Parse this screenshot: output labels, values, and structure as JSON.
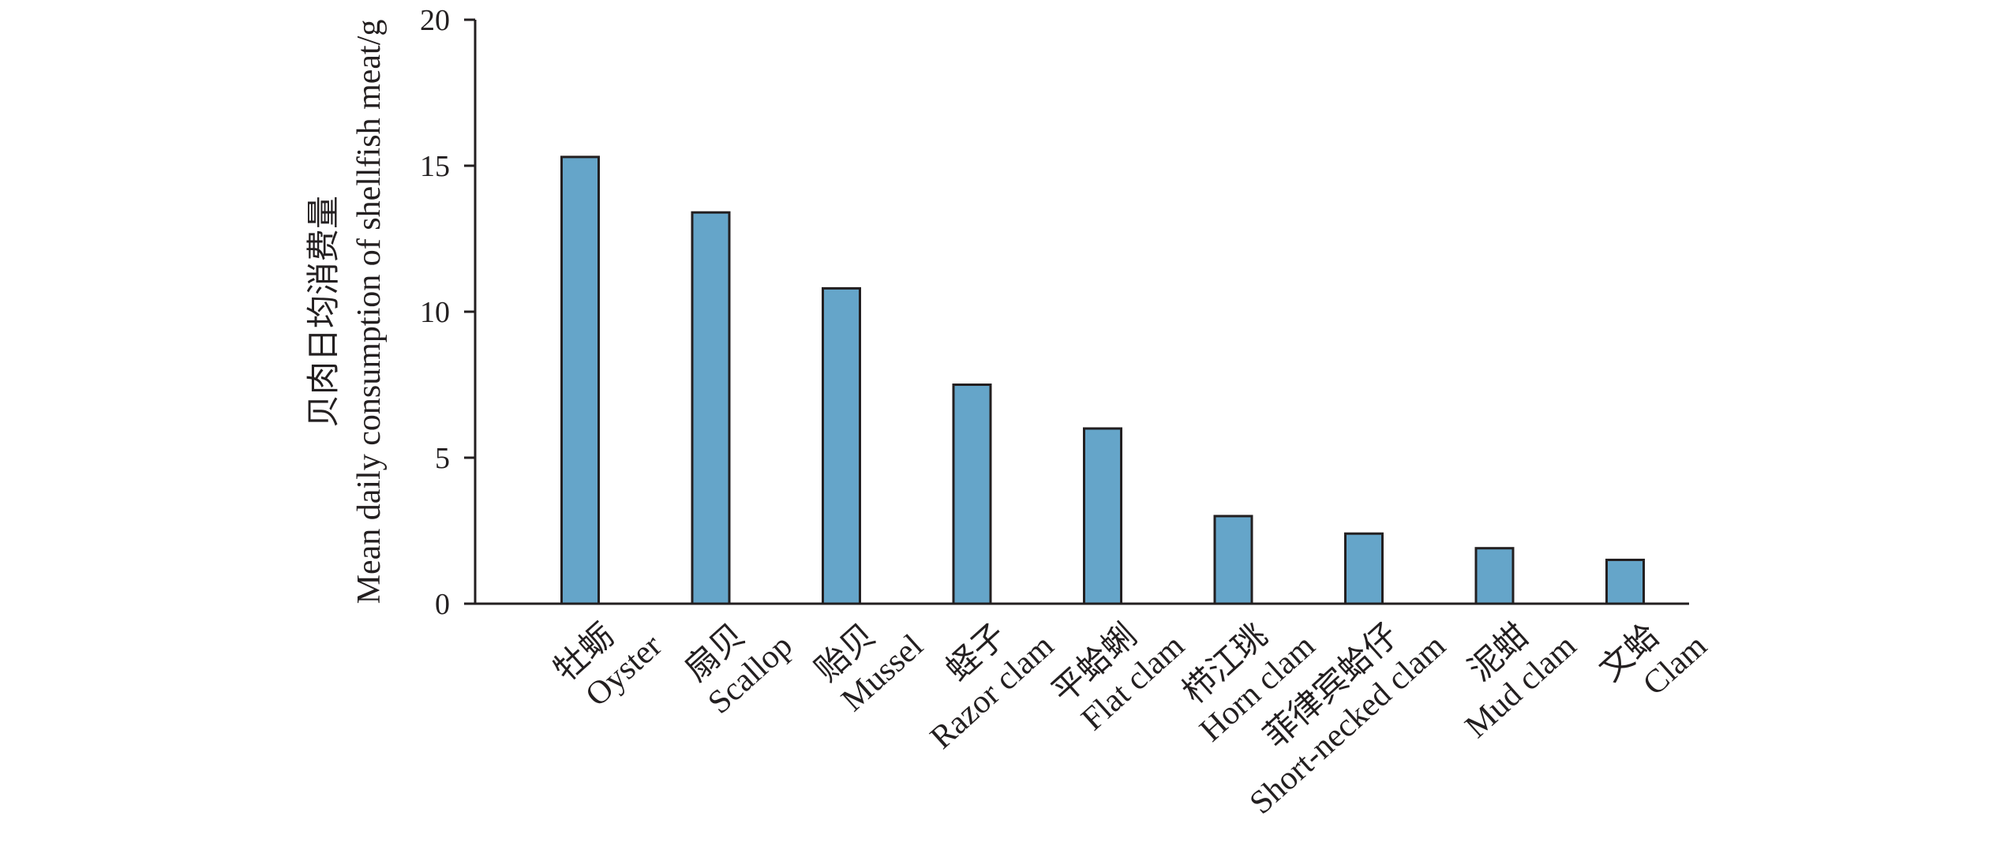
{
  "chart_data": {
    "type": "bar",
    "title": "",
    "xlabel": "",
    "ylabel_cn": "贝肉日均消费量",
    "ylabel_en": "Mean daily consumption of shellfish meat/g",
    "ylim": [
      0,
      20
    ],
    "yticks": [
      "0",
      "5",
      "10",
      "15",
      "20"
    ],
    "ytick_values": [
      0,
      5,
      10,
      15,
      20
    ],
    "categories": [
      {
        "cn": "牡蛎",
        "en": "Oyster"
      },
      {
        "cn": "扇贝",
        "en": "Scallop"
      },
      {
        "cn": "贻贝",
        "en": "Mussel"
      },
      {
        "cn": "蛏子",
        "en": "Razor clam"
      },
      {
        "cn": "平蛤蜊",
        "en": "Flat clam"
      },
      {
        "cn": "栉江珧",
        "en": "Horn clam"
      },
      {
        "cn": "菲律宾蛤仔",
        "en": "Short-necked clam"
      },
      {
        "cn": "泥蚶",
        "en": "Mud clam"
      },
      {
        "cn": "文蛤",
        "en": "Clam"
      }
    ],
    "values": [
      15.3,
      13.4,
      10.8,
      7.5,
      6.0,
      3.0,
      2.4,
      1.9,
      1.5
    ],
    "bar_color": "#65a5c9",
    "grid": false
  }
}
